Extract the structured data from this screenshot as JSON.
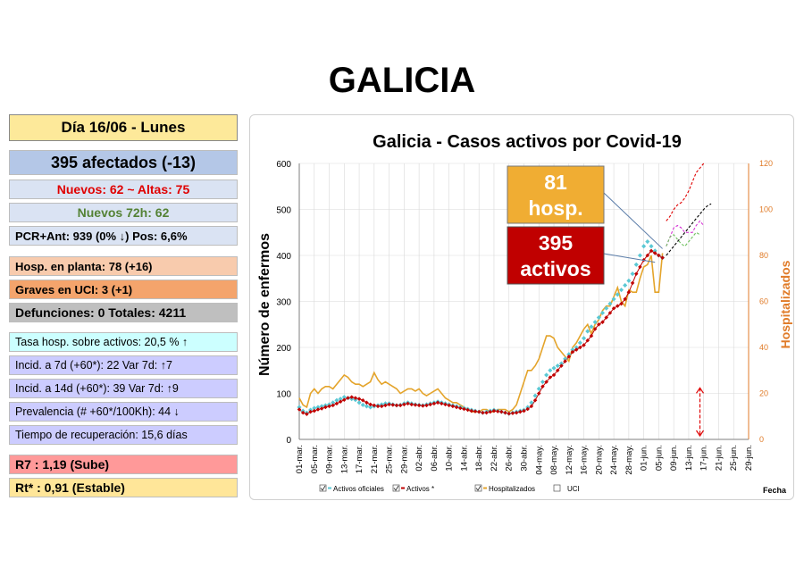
{
  "page_title": "GALICIA",
  "panel": {
    "day": "Día 16/06 - Lunes",
    "affected": "395 afectados (-13)",
    "new_discharges": "Nuevos:  62  ~ Altas:  75",
    "new_72h": "Nuevos 72h:  62",
    "pcr": "PCR+Ant: 939  (0% ↓)  Pos: 6,6%",
    "hosp_ward": "Hosp. en planta:  78 (+16)",
    "icu": "Graves en UCI:     3 (+1)",
    "deaths": "Defunciones: 0    Totales: 4211",
    "hosp_rate": "Tasa hosp. sobre activos:   20,5 %  ↑",
    "incid7": "Incid. a 7d (+60*):   22  Var 7d:  ↑7",
    "incid14": "Incid. a 14d (+60*): 39  Var 7d:   ↑9",
    "prevalence": "Prevalencia (# +60*/100Kh):  44 ↓",
    "recovery": "Tiempo de recuperación: 15,6 días",
    "r7": "R7 :  1,19 (Sube)",
    "rt": "Rt* :  0,91 (Estable)"
  },
  "colors": {
    "box_day": "#fde99a",
    "box_affected": "#b4c7e7",
    "box_light": "#dae3f3",
    "box_hosp": "#f8cbad",
    "box_icu": "#f4a46c",
    "box_deaths": "#bfbfbf",
    "box_cyan": "#ccffff",
    "box_lav": "#ccccff",
    "box_r7": "#ff9999",
    "box_rt": "#ffe699",
    "red_text": "#e00000",
    "green_text": "#548235",
    "series_oficiales": "#5bc8d4",
    "series_activos": "#c00000",
    "series_hosp": "#e4a42b",
    "right_axis": "#e07b28",
    "callout_orange": "#f0ad33",
    "callout_red": "#c00000"
  },
  "chart_data": {
    "type": "line",
    "title": "Galicia  -  Casos activos por Covid-19",
    "ylabel": "Número de enfermos",
    "ylabel_right": "Hospitalizados",
    "xlabel": "Fecha",
    "ylim": [
      0,
      600
    ],
    "y_ticks": [
      "0",
      "100",
      "200",
      "300",
      "400",
      "500",
      "600"
    ],
    "ylim_right": [
      0,
      120
    ],
    "y_ticks_right": [
      "0",
      "20",
      "40",
      "60",
      "80",
      "100",
      "120"
    ],
    "x_tick_labels": [
      "01-mar.",
      "05-mar.",
      "09-mar.",
      "13-mar.",
      "17-mar.",
      "21-mar.",
      "25-mar.",
      "29-mar.",
      "02-abr.",
      "06-abr.",
      "10-abr.",
      "14-abr.",
      "18-abr.",
      "22-abr.",
      "26-abr.",
      "30-abr.",
      "04-may.",
      "08-may.",
      "12-may.",
      "16-may.",
      "20-may.",
      "24-may.",
      "28-may.",
      "01-jun.",
      "05-jun.",
      "09-jun.",
      "13-jun.",
      "17-jun.",
      "21-jun.",
      "25-jun.",
      "29-jun."
    ],
    "x_day_range": [
      0,
      120
    ],
    "current_day": 107,
    "series": [
      {
        "name": "Activos oficiales",
        "values": [
          70,
          62,
          58,
          64,
          68,
          70,
          72,
          74,
          76,
          80,
          85,
          88,
          92,
          90,
          88,
          86,
          80,
          75,
          72,
          70,
          72,
          74,
          76,
          78,
          78,
          76,
          74,
          75,
          78,
          80,
          78,
          76,
          75,
          74,
          76,
          78,
          80,
          82,
          80,
          78,
          76,
          74,
          72,
          70,
          68,
          66,
          64,
          62,
          60,
          58,
          60,
          62,
          64,
          62,
          60,
          58,
          56,
          58,
          60,
          62,
          64,
          70,
          80,
          95,
          110,
          125,
          140,
          150,
          155,
          160,
          165,
          175,
          185,
          195,
          200,
          210,
          220,
          235,
          245,
          255,
          265,
          275,
          285,
          295,
          305,
          315,
          325,
          335,
          345,
          360,
          380,
          400,
          420,
          430,
          420,
          410,
          400,
          395
        ]
      },
      {
        "name": "Activos *",
        "values": [
          65,
          58,
          55,
          60,
          62,
          65,
          67,
          70,
          72,
          74,
          78,
          82,
          86,
          90,
          92,
          90,
          88,
          85,
          80,
          76,
          74,
          72,
          72,
          74,
          76,
          75,
          74,
          74,
          76,
          78,
          76,
          75,
          74,
          73,
          74,
          76,
          78,
          80,
          78,
          76,
          74,
          72,
          70,
          68,
          66,
          64,
          62,
          61,
          60,
          58,
          58,
          60,
          62,
          61,
          60,
          58,
          56,
          57,
          58,
          60,
          62,
          66,
          72,
          85,
          100,
          115,
          125,
          135,
          140,
          150,
          160,
          170,
          180,
          190,
          195,
          200,
          205,
          215,
          225,
          240,
          250,
          255,
          265,
          275,
          285,
          290,
          295,
          305,
          320,
          340,
          360,
          375,
          390,
          400,
          410,
          405,
          400,
          395
        ]
      },
      {
        "name": "Hospitalizados",
        "values": [
          18,
          15,
          14,
          20,
          22,
          20,
          22,
          23,
          23,
          22,
          24,
          26,
          28,
          27,
          25,
          24,
          24,
          23,
          24,
          25,
          29,
          26,
          24,
          25,
          24,
          23,
          22,
          20,
          21,
          22,
          22,
          21,
          22,
          20,
          19,
          20,
          21,
          22,
          20,
          18,
          17,
          16,
          16,
          15,
          14,
          13,
          12,
          12,
          12,
          13,
          13,
          12,
          12,
          13,
          13,
          13,
          12,
          13,
          15,
          20,
          25,
          30,
          30,
          32,
          35,
          40,
          45,
          45,
          44,
          40,
          38,
          36,
          34,
          40,
          42,
          45,
          48,
          50,
          46,
          50,
          52,
          56,
          58,
          58,
          62,
          66,
          60,
          58,
          65,
          64,
          64,
          70,
          75,
          76,
          80,
          64,
          64,
          81
        ]
      }
    ],
    "projections": [
      {
        "values": [
          [
            98,
            400
          ],
          [
            100,
            420
          ],
          [
            102,
            440
          ],
          [
            104,
            460
          ],
          [
            105,
            470
          ],
          [
            106,
            480
          ],
          [
            107,
            490
          ],
          [
            108,
            500
          ],
          [
            109,
            508
          ],
          [
            110,
            512
          ]
        ]
      },
      {
        "values": [
          [
            98,
            95
          ],
          [
            99,
            97
          ],
          [
            100,
            100
          ],
          [
            101,
            102
          ],
          [
            102,
            103
          ],
          [
            103,
            105
          ],
          [
            104,
            108
          ],
          [
            105,
            112
          ],
          [
            106,
            116
          ],
          [
            107,
            118
          ],
          [
            108,
            120
          ]
        ]
      },
      {
        "values": [
          [
            98,
            84
          ],
          [
            99,
            88
          ],
          [
            100,
            92
          ],
          [
            101,
            93
          ],
          [
            102,
            92
          ],
          [
            103,
            90
          ],
          [
            104,
            90
          ],
          [
            105,
            90
          ],
          [
            106,
            93
          ],
          [
            107,
            95
          ],
          [
            108,
            93
          ]
        ]
      },
      {
        "values": [
          [
            98,
            84
          ],
          [
            99,
            88
          ],
          [
            100,
            89
          ],
          [
            101,
            87
          ],
          [
            102,
            85
          ],
          [
            103,
            84
          ],
          [
            104,
            86
          ],
          [
            105,
            88
          ],
          [
            106,
            90
          ],
          [
            107,
            89
          ]
        ]
      }
    ],
    "callouts": [
      {
        "text": "81 hosp."
      },
      {
        "text": "395 activos"
      }
    ],
    "legend": [
      "Activos oficiales",
      "Activos *",
      "Hospitalizados",
      "UCI"
    ]
  }
}
